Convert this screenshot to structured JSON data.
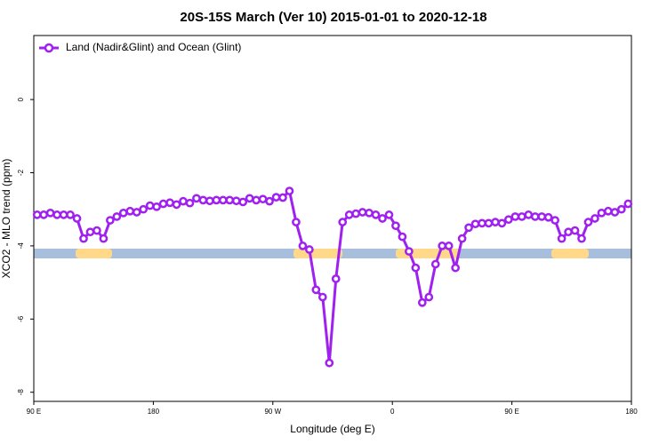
{
  "chart_data": {
    "type": "line",
    "title": "20S-15S March (Ver 10)   2015-01-01 to 2020-12-18",
    "xlabel": "Longitude (deg E)",
    "ylabel": "XCO2 - MLO trend (ppm)",
    "legend": "topleft",
    "grid": false,
    "xlim": [
      90,
      540
    ],
    "ylim": [
      -8.25,
      1.75
    ],
    "xticks": [
      {
        "value": 90,
        "label": "90 E"
      },
      {
        "value": 180,
        "label": "180"
      },
      {
        "value": 270,
        "label": "90 W"
      },
      {
        "value": 360,
        "label": "0"
      },
      {
        "value": 450,
        "label": "90 E"
      },
      {
        "value": 540,
        "label": "180"
      }
    ],
    "yticks": [
      0,
      -2,
      -4,
      -6,
      -8
    ],
    "x": [
      92.5,
      97.5,
      102.5,
      107.5,
      112.5,
      117.5,
      122.5,
      127.5,
      132.5,
      137.5,
      142.5,
      147.5,
      152.5,
      157.5,
      162.5,
      167.5,
      172.5,
      177.5,
      182.5,
      187.5,
      192.5,
      197.5,
      202.5,
      207.5,
      212.5,
      217.5,
      222.5,
      227.5,
      232.5,
      237.5,
      242.5,
      247.5,
      252.5,
      257.5,
      262.5,
      267.5,
      272.5,
      277.5,
      282.5,
      287.5,
      292.5,
      297.5,
      302.5,
      307.5,
      312.5,
      317.5,
      322.5,
      327.5,
      332.5,
      337.5,
      342.5,
      347.5,
      352.5,
      357.5,
      362.5,
      367.5,
      372.5,
      377.5,
      382.5,
      387.5,
      392.5,
      397.5,
      402.5,
      407.5,
      412.5,
      417.5,
      422.5,
      427.5,
      432.5,
      437.5,
      442.5,
      447.5,
      452.5,
      457.5,
      462.5,
      467.5,
      472.5,
      477.5,
      482.5,
      487.5,
      492.5,
      497.5,
      502.5,
      507.5,
      512.5,
      517.5,
      522.5,
      527.5,
      532.5,
      537.5
    ],
    "series": [
      {
        "name": "Land (Nadir&Glint) and Ocean (Glint)",
        "color": "#a020f0",
        "values": [
          -3.15,
          -3.15,
          -3.1,
          -3.15,
          -3.15,
          -3.15,
          -3.25,
          -3.8,
          -3.62,
          -3.58,
          -3.8,
          -3.3,
          -3.2,
          -3.1,
          -3.05,
          -3.08,
          -3.0,
          -2.9,
          -2.93,
          -2.85,
          -2.82,
          -2.87,
          -2.78,
          -2.83,
          -2.7,
          -2.75,
          -2.77,
          -2.75,
          -2.75,
          -2.75,
          -2.77,
          -2.8,
          -2.7,
          -2.75,
          -2.72,
          -2.78,
          -2.67,
          -2.68,
          -2.5,
          -3.35,
          -4.0,
          -4.1,
          -5.2,
          -5.4,
          -7.2,
          -4.9,
          -3.35,
          -3.15,
          -3.12,
          -3.08,
          -3.1,
          -3.15,
          -3.25,
          -3.15,
          -3.45,
          -3.75,
          -4.15,
          -4.6,
          -5.55,
          -5.4,
          -4.5,
          -4.0,
          -4.0,
          -4.6,
          -3.8,
          -3.5,
          -3.4,
          -3.38,
          -3.38,
          -3.35,
          -3.38,
          -3.28,
          -3.2,
          -3.2,
          -3.15,
          -3.2,
          -3.2,
          -3.22,
          -3.3,
          -3.8,
          -3.62,
          -3.58,
          -3.8,
          -3.35,
          -3.25,
          -3.1,
          -3.05,
          -3.08,
          -3.0,
          -2.85
        ]
      }
    ]
  }
}
